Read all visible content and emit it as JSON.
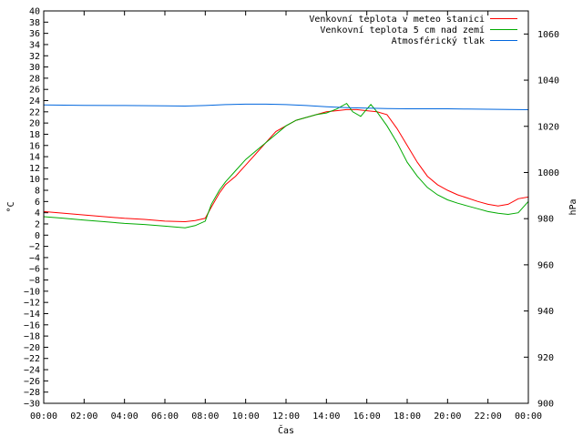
{
  "chart_data": {
    "type": "line",
    "xlabel": "Čas",
    "ylabel": "°C",
    "y2label": "hPa",
    "x_ticks": [
      "00:00",
      "02:00",
      "04:00",
      "06:00",
      "08:00",
      "10:00",
      "12:00",
      "14:00",
      "16:00",
      "18:00",
      "20:00",
      "22:00",
      "00:00"
    ],
    "xlim_hours": [
      0,
      24
    ],
    "ylim": [
      -30,
      40
    ],
    "y_tick_step": 2,
    "y2lim": [
      900,
      1070
    ],
    "y2_ticks": [
      900,
      920,
      940,
      960,
      980,
      1000,
      1020,
      1040,
      1060
    ],
    "grid": false,
    "legend_position": "top-right",
    "series": [
      {
        "name": "Venkovní teplota v meteo stanici",
        "axis": "left",
        "color": "#ff0000",
        "x": [
          0,
          1,
          2,
          3,
          4,
          5,
          6,
          7,
          7.5,
          8,
          8.3,
          8.7,
          9,
          9.5,
          10,
          10.5,
          11,
          11.5,
          12,
          12.5,
          13,
          13.5,
          14,
          14.5,
          15,
          15.5,
          16,
          16.5,
          17,
          17.5,
          18,
          18.5,
          19,
          19.5,
          20,
          20.5,
          21,
          21.5,
          22,
          22.5,
          23,
          23.5,
          24
        ],
        "y": [
          4.2,
          3.9,
          3.6,
          3.3,
          3.0,
          2.8,
          2.5,
          2.4,
          2.6,
          3.0,
          5.0,
          7.5,
          9.0,
          10.5,
          12.5,
          14.5,
          16.5,
          18.5,
          19.5,
          20.5,
          21.0,
          21.5,
          22.0,
          22.2,
          22.4,
          22.4,
          22.2,
          22.0,
          21.5,
          19.0,
          16.0,
          13.0,
          10.5,
          9.0,
          8.0,
          7.2,
          6.6,
          6.0,
          5.5,
          5.2,
          5.5,
          6.5,
          6.8
        ]
      },
      {
        "name": "Venkovní teplota 5 cm nad zemí",
        "axis": "left",
        "color": "#00aa00",
        "x": [
          0,
          1,
          2,
          3,
          4,
          5,
          6,
          7,
          7.5,
          8,
          8.3,
          8.7,
          9,
          9.5,
          10,
          10.5,
          11,
          11.5,
          12,
          12.5,
          13,
          13.5,
          14,
          14.5,
          15,
          15.3,
          15.7,
          16,
          16.2,
          16.5,
          17,
          17.5,
          18,
          18.5,
          19,
          19.5,
          20,
          20.5,
          21,
          21.5,
          22,
          22.5,
          23,
          23.5,
          24
        ],
        "y": [
          3.3,
          3.0,
          2.7,
          2.4,
          2.1,
          1.9,
          1.6,
          1.3,
          1.7,
          2.5,
          5.5,
          8.0,
          9.5,
          11.5,
          13.5,
          15.0,
          16.5,
          18.0,
          19.5,
          20.5,
          21.0,
          21.5,
          21.8,
          22.5,
          23.5,
          22.0,
          21.2,
          22.5,
          23.3,
          22.0,
          19.5,
          16.5,
          13.0,
          10.5,
          8.5,
          7.2,
          6.3,
          5.7,
          5.2,
          4.7,
          4.2,
          3.9,
          3.7,
          4.0,
          6.0
        ]
      },
      {
        "name": "Atmosférický tlak",
        "axis": "right",
        "color": "#0066dd",
        "x": [
          0,
          2,
          4,
          6,
          7,
          8,
          9,
          10,
          11,
          12,
          13,
          14,
          15,
          16,
          17,
          18,
          19,
          20,
          21,
          22,
          23,
          24
        ],
        "y": [
          1029.3,
          1029.1,
          1029.0,
          1028.9,
          1028.8,
          1029.0,
          1029.4,
          1029.6,
          1029.6,
          1029.4,
          1029.0,
          1028.5,
          1028.1,
          1027.9,
          1027.7,
          1027.6,
          1027.6,
          1027.6,
          1027.5,
          1027.4,
          1027.3,
          1027.2
        ]
      }
    ]
  }
}
